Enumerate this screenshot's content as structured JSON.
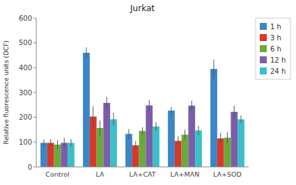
{
  "chart_data": {
    "type": "bar",
    "title": "Jurkat",
    "ylabel": "Relative fluorescence units (DCF)",
    "categories": [
      "Control",
      "LA",
      "LA+CAT",
      "LA+MAN",
      "LA+SOD"
    ],
    "series": [
      {
        "name": "1 h",
        "color": "#3a86c8",
        "values": [
          97,
          460,
          133,
          227,
          395
        ],
        "errors": [
          15,
          22,
          20,
          15,
          38
        ]
      },
      {
        "name": "3 h",
        "color": "#d7382a",
        "values": [
          97,
          203,
          87,
          105,
          115
        ],
        "errors": [
          15,
          42,
          18,
          18,
          22
        ]
      },
      {
        "name": "6 h",
        "color": "#6aaa3a",
        "values": [
          90,
          157,
          145,
          130,
          118
        ],
        "errors": [
          18,
          30,
          15,
          20,
          22
        ]
      },
      {
        "name": "12 h",
        "color": "#7b5ea7",
        "values": [
          97,
          258,
          248,
          247,
          222
        ],
        "errors": [
          20,
          25,
          22,
          20,
          25
        ]
      },
      {
        "name": "24 h",
        "color": "#3bbfc8",
        "values": [
          97,
          192,
          163,
          147,
          192
        ],
        "errors": [
          15,
          25,
          18,
          18,
          15
        ]
      }
    ],
    "ylim": [
      0,
      600
    ],
    "yticks": [
      0,
      100,
      200,
      300,
      400,
      500,
      600
    ],
    "grid": false,
    "legend": "right"
  }
}
